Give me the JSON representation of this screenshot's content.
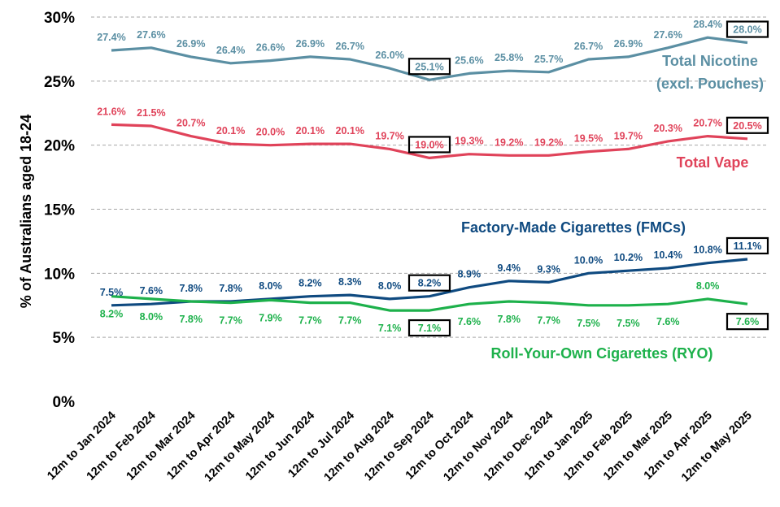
{
  "chart_data": {
    "type": "line",
    "ylabel": "% of Australians aged 18-24",
    "ylim": [
      0,
      30
    ],
    "yticks": [
      "0%",
      "5%",
      "10%",
      "15%",
      "20%",
      "25%",
      "30%"
    ],
    "grid": "horizontal dashed",
    "categories": [
      "12m to Jan 2024",
      "12m to Feb 2024",
      "12m to Mar 2024",
      "12m to Apr 2024",
      "12m to May 2024",
      "12m to Jun 2024",
      "12m to Jul 2024",
      "12m to Aug 2024",
      "12m to Sep 2024",
      "12m to Oct 2024",
      "12m to Nov 2024",
      "12m to Dec 2024",
      "12m to Jan 2025",
      "12m to Feb 2025",
      "12m to Mar 2025",
      "12m to Apr 2025",
      "12m to May 2025"
    ],
    "series": [
      {
        "name": "Total Nicotine (excl. Pouches)",
        "name_lines": [
          "Total Nicotine",
          "(excl. Pouches)"
        ],
        "color": "#5b8fa3",
        "values": [
          27.4,
          27.6,
          26.9,
          26.4,
          26.6,
          26.9,
          26.7,
          26.0,
          25.1,
          25.6,
          25.8,
          25.7,
          26.7,
          26.9,
          27.6,
          28.4,
          28.0
        ],
        "labels": [
          "27.4%",
          "27.6%",
          "26.9%",
          "26.4%",
          "26.6%",
          "26.9%",
          "26.7%",
          "26.0%",
          "25.1%",
          "25.6%",
          "25.8%",
          "25.7%",
          "26.7%",
          "26.9%",
          "27.6%",
          "28.4%",
          "28.0%"
        ],
        "boxed": [
          8,
          16
        ]
      },
      {
        "name": "Total Vape",
        "name_lines": [
          "Total Vape"
        ],
        "color": "#e0435a",
        "values": [
          21.6,
          21.5,
          20.7,
          20.1,
          20.0,
          20.1,
          20.1,
          19.7,
          19.0,
          19.3,
          19.2,
          19.2,
          19.5,
          19.7,
          20.3,
          20.7,
          20.5
        ],
        "labels": [
          "21.6%",
          "21.5%",
          "20.7%",
          "20.1%",
          "20.0%",
          "20.1%",
          "20.1%",
          "19.7%",
          "19.0%",
          "19.3%",
          "19.2%",
          "19.2%",
          "19.5%",
          "19.7%",
          "20.3%",
          "20.7%",
          "20.5%"
        ],
        "boxed": [
          8,
          16
        ]
      },
      {
        "name": "Factory-Made Cigarettes (FMCs)",
        "name_lines": [
          "Factory-Made Cigarettes (FMCs)"
        ],
        "color": "#0f4a80",
        "values": [
          7.5,
          7.6,
          7.8,
          7.8,
          8.0,
          8.2,
          8.3,
          8.0,
          8.2,
          8.9,
          9.4,
          9.3,
          10.0,
          10.2,
          10.4,
          10.8,
          11.1
        ],
        "labels": [
          "7.5%",
          "7.6%",
          "7.8%",
          "7.8%",
          "8.0%",
          "8.2%",
          "8.3%",
          "8.0%",
          "8.2%",
          "8.9%",
          "9.4%",
          "9.3%",
          "10.0%",
          "10.2%",
          "10.4%",
          "10.8%",
          "11.1%"
        ],
        "boxed": [
          8,
          16
        ]
      },
      {
        "name": "Roll-Your-Own Cigarettes (RYO)",
        "name_lines": [
          "Roll-Your-Own Cigarettes (RYO)"
        ],
        "color": "#1db14b",
        "values": [
          8.2,
          8.0,
          7.8,
          7.7,
          7.9,
          7.7,
          7.7,
          7.1,
          7.1,
          7.6,
          7.8,
          7.7,
          7.5,
          7.5,
          7.6,
          8.0,
          7.6
        ],
        "labels": [
          "8.2%",
          "8.0%",
          "7.8%",
          "7.7%",
          "7.9%",
          "7.7%",
          "7.7%",
          "7.1%",
          "7.1%",
          "7.6%",
          "7.8%",
          "7.7%",
          "7.5%",
          "7.5%",
          "7.6%",
          "8.0%",
          "7.6%"
        ],
        "boxed": [
          8,
          16
        ]
      }
    ]
  }
}
